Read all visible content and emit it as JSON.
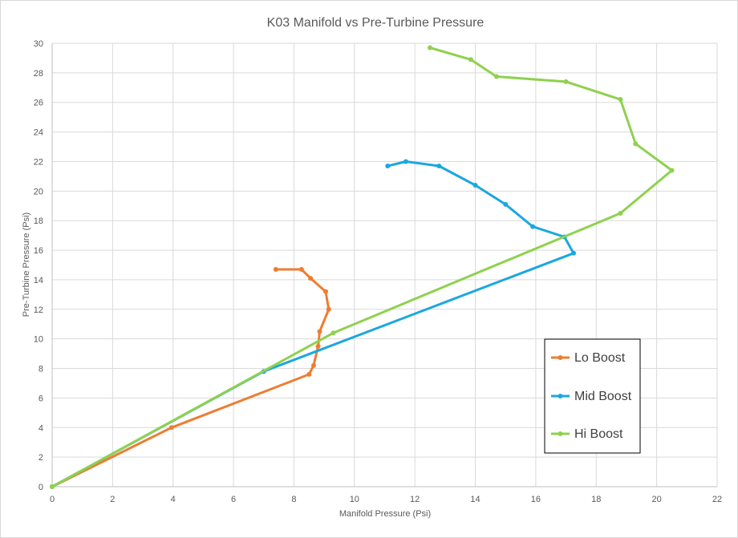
{
  "chart_data": {
    "type": "scatter",
    "title": "K03 Manifold vs Pre-Turbine Pressure",
    "xlabel": "Manifold Pressure (Psi)",
    "ylabel": "Pre-Turbine Pressure (Psi)",
    "xlim": [
      0,
      22
    ],
    "ylim": [
      0,
      30
    ],
    "xticks": [
      0,
      2,
      4,
      6,
      8,
      10,
      12,
      14,
      16,
      18,
      20,
      22
    ],
    "yticks": [
      0,
      2,
      4,
      6,
      8,
      10,
      12,
      14,
      16,
      18,
      20,
      22,
      24,
      26,
      28,
      30
    ],
    "grid": true,
    "legend_position": "bottom-right",
    "series": [
      {
        "name": "Lo Boost",
        "color": "#ED7D31",
        "x": [
          0,
          3.95,
          8.5,
          8.65,
          8.8,
          8.85,
          9.15,
          9.05,
          8.55,
          8.25,
          7.4
        ],
        "y": [
          0,
          4.0,
          7.6,
          8.2,
          9.5,
          10.5,
          12.0,
          13.2,
          14.1,
          14.7,
          14.7
        ]
      },
      {
        "name": "Mid Boost",
        "color": "#1BA7E0",
        "x": [
          0,
          7.0,
          17.25,
          16.95,
          15.9,
          15.0,
          14.0,
          12.8,
          11.7,
          11.1
        ],
        "y": [
          0,
          7.8,
          15.8,
          16.9,
          17.6,
          19.1,
          20.4,
          21.7,
          22.0,
          21.7
        ]
      },
      {
        "name": "Hi Boost",
        "color": "#8FD14F",
        "x": [
          0,
          9.3,
          18.8,
          20.5,
          19.3,
          18.8,
          17.0,
          14.7,
          13.85,
          12.5
        ],
        "y": [
          0,
          10.4,
          18.5,
          21.4,
          23.2,
          26.2,
          27.4,
          27.75,
          28.9,
          29.7
        ]
      }
    ]
  }
}
